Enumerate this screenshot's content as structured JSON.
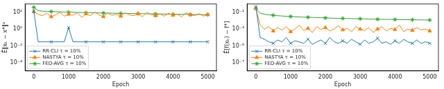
{
  "chart_data": [
    {
      "type": "line",
      "x_label": "Epoch",
      "y_label": "Ê‖xₖ − x*‖²",
      "log": "y",
      "grid": false,
      "legend": "lower left",
      "xlim": [
        -250,
        5250
      ],
      "xticks": [
        0,
        1000,
        2000,
        3000,
        4000,
        5000
      ],
      "ylim": [
        1e-05,
        1000
      ],
      "yticks": [
        {
          "value": 0.0001,
          "label": "10⁻⁴"
        },
        {
          "value": 0.01,
          "label": "10⁻²"
        },
        {
          "value": 1,
          "label": "10⁰"
        },
        {
          "value": 100,
          "label": "10²"
        }
      ],
      "x": [
        0,
        125,
        250,
        375,
        500,
        625,
        750,
        875,
        1000,
        1125,
        1250,
        1375,
        1500,
        1625,
        1750,
        1875,
        2000,
        2125,
        2250,
        2375,
        2500,
        2625,
        2750,
        2875,
        3000,
        3125,
        3250,
        3375,
        3500,
        3625,
        3750,
        3875,
        4000,
        4125,
        4250,
        4375,
        4500,
        4625,
        4750,
        4875,
        5000
      ],
      "series": [
        {
          "name": "RR-CLI τ = 10%",
          "color": "#1f77b4",
          "marker": "x",
          "values": [
            150,
            0.03,
            0.03,
            0.03,
            0.03,
            0.03,
            0.03,
            0.03,
            1.5,
            0.03,
            0.03,
            0.03,
            0.03,
            0.03,
            0.03,
            0.03,
            0.03,
            0.03,
            0.03,
            0.03,
            0.03,
            0.03,
            0.03,
            0.03,
            0.03,
            0.03,
            0.03,
            0.03,
            0.03,
            0.03,
            0.03,
            0.03,
            0.03,
            0.03,
            0.03,
            0.03,
            0.03,
            0.03,
            0.03,
            0.03,
            0.03
          ]
        },
        {
          "name": "NASTYA τ = 10%",
          "color": "#ff7f0e",
          "marker": "triangle",
          "values": [
            120,
            60,
            40,
            80,
            30,
            50,
            100,
            35,
            60,
            45,
            90,
            25,
            70,
            40,
            110,
            50,
            30,
            80,
            45,
            60,
            35,
            90,
            50,
            40,
            70,
            30,
            100,
            55,
            40,
            65,
            35,
            80,
            45,
            60,
            30,
            90,
            50,
            40,
            70,
            35,
            55
          ]
        },
        {
          "name": "FED-AVG τ = 10%",
          "color": "#2ca02c",
          "marker": "star",
          "values": [
            400,
            160,
            140,
            130,
            125,
            120,
            115,
            110,
            106,
            102,
            98,
            95,
            92,
            90,
            88,
            86,
            84,
            82,
            80,
            78,
            76,
            75,
            73,
            72,
            70,
            69,
            68,
            66,
            65,
            64,
            63,
            62,
            61,
            60,
            59,
            58,
            57,
            56,
            55,
            54,
            53
          ]
        }
      ]
    },
    {
      "type": "line",
      "x_label": "Epoch",
      "y_label": "Ê[f(xₖ) − f*]",
      "log": "y",
      "grid": false,
      "legend": "lower left",
      "xlim": [
        -250,
        5250
      ],
      "xticks": [
        0,
        1000,
        2000,
        3000,
        4000,
        5000
      ],
      "ylim": [
        1e-08,
        1
      ],
      "yticks": [
        {
          "value": 1e-07,
          "label": "10⁻⁷"
        },
        {
          "value": 1e-05,
          "label": "10⁻⁵"
        },
        {
          "value": 0.001,
          "label": "10⁻³"
        },
        {
          "value": 0.1,
          "label": "10⁻¹"
        }
      ],
      "x": [
        0,
        125,
        250,
        375,
        500,
        625,
        750,
        875,
        1000,
        1125,
        1250,
        1375,
        1500,
        1625,
        1750,
        1875,
        2000,
        2125,
        2250,
        2375,
        2500,
        2625,
        2750,
        2875,
        3000,
        3125,
        3250,
        3375,
        3500,
        3625,
        3750,
        3875,
        4000,
        4125,
        4250,
        4375,
        4500,
        4625,
        4750,
        4875,
        5000
      ],
      "series": [
        {
          "name": "RR-CLI τ = 10%",
          "color": "#1f77b4",
          "marker": "x",
          "values": [
            0.5,
            0.0001,
            6e-05,
            3e-05,
            2e-05,
            5e-05,
            3e-05,
            0.0001,
            2e-05,
            4e-05,
            3e-05,
            2e-05,
            6e-05,
            1.5e-05,
            3e-05,
            5e-05,
            2e-05,
            0.0001,
            3e-05,
            2e-05,
            4e-05,
            2e-05,
            6e-05,
            3e-05,
            1.5e-05,
            5e-05,
            2e-05,
            3e-05,
            8e-05,
            2e-05,
            3e-05,
            1.5e-05,
            4e-05,
            2e-05,
            6e-05,
            3e-05,
            2e-05,
            5e-05,
            2e-05,
            3e-05,
            2e-05
          ]
        },
        {
          "name": "NASTYA τ = 10%",
          "color": "#ff7f0e",
          "marker": "triangle",
          "values": [
            0.3,
            0.003,
            0.001,
            0.002,
            0.0006,
            0.0015,
            0.0008,
            0.002,
            0.0005,
            0.001,
            0.003,
            0.0007,
            0.0012,
            0.0004,
            0.002,
            0.0009,
            0.0015,
            0.0006,
            0.001,
            0.0025,
            0.0008,
            0.0012,
            0.0005,
            0.002,
            0.001,
            0.0007,
            0.0015,
            0.0004,
            0.001,
            0.002,
            0.0006,
            0.0012,
            0.0009,
            0.003,
            0.0005,
            0.001,
            0.0007,
            0.0015,
            0.0008,
            0.001,
            0.0006
          ]
        },
        {
          "name": "FED-AVG τ = 10%",
          "color": "#2ca02c",
          "marker": "star",
          "values": [
            0.3,
            0.08,
            0.06,
            0.05,
            0.045,
            0.04,
            0.037,
            0.034,
            0.032,
            0.03,
            0.028,
            0.027,
            0.026,
            0.025,
            0.024,
            0.023,
            0.022,
            0.021,
            0.02,
            0.0195,
            0.019,
            0.0185,
            0.018,
            0.0175,
            0.017,
            0.0165,
            0.016,
            0.0155,
            0.015,
            0.0148,
            0.0145,
            0.0142,
            0.014,
            0.0137,
            0.0135,
            0.0132,
            0.013,
            0.0128,
            0.0126,
            0.0124,
            0.012
          ]
        }
      ]
    }
  ]
}
